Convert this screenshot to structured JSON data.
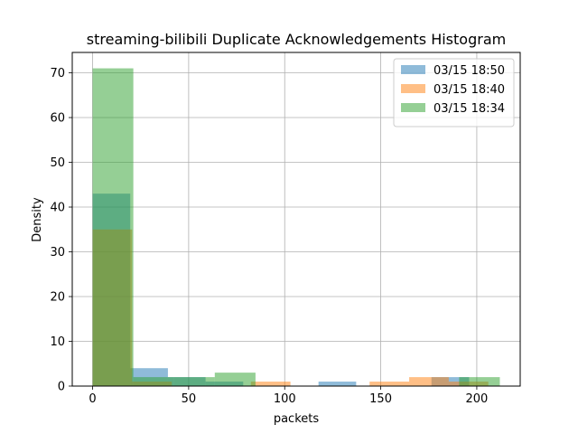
{
  "chart_data": {
    "type": "bar",
    "subtype": "overlapping-histogram",
    "title": "streaming-bilibili Duplicate Acknowledgements Histogram",
    "xlabel": "packets",
    "ylabel": "Density",
    "xlim": [
      -10.6,
      222.6
    ],
    "ylim": [
      0,
      74.55
    ],
    "xticks": [
      0,
      50,
      100,
      150,
      200
    ],
    "yticks": [
      0,
      10,
      20,
      30,
      40,
      50,
      60,
      70
    ],
    "grid": true,
    "legend_position": "top-right",
    "series": [
      {
        "name": "03/15 18:50",
        "color": "#1f77b4",
        "bins": [
          {
            "x0": 0,
            "x1": 19.6,
            "value": 43
          },
          {
            "x0": 19.6,
            "x1": 39.2,
            "value": 4
          },
          {
            "x0": 39.2,
            "x1": 58.8,
            "value": 2
          },
          {
            "x0": 58.8,
            "x1": 78.4,
            "value": 1
          },
          {
            "x0": 117.6,
            "x1": 137.2,
            "value": 1
          },
          {
            "x0": 176.4,
            "x1": 196,
            "value": 2
          }
        ]
      },
      {
        "name": "03/15 18:40",
        "color": "#ff7f0e",
        "bins": [
          {
            "x0": 0,
            "x1": 20.6,
            "value": 35
          },
          {
            "x0": 20.6,
            "x1": 41.2,
            "value": 1
          },
          {
            "x0": 82.4,
            "x1": 103,
            "value": 1
          },
          {
            "x0": 144.2,
            "x1": 164.8,
            "value": 1
          },
          {
            "x0": 164.8,
            "x1": 185.4,
            "value": 2
          },
          {
            "x0": 185.4,
            "x1": 206,
            "value": 1
          }
        ]
      },
      {
        "name": "03/15 18:34",
        "color": "#2ca02c",
        "bins": [
          {
            "x0": 0,
            "x1": 21.2,
            "value": 71
          },
          {
            "x0": 21.2,
            "x1": 42.4,
            "value": 2
          },
          {
            "x0": 42.4,
            "x1": 63.6,
            "value": 2
          },
          {
            "x0": 63.6,
            "x1": 84.8,
            "value": 3
          },
          {
            "x0": 190.8,
            "x1": 212,
            "value": 2
          }
        ]
      }
    ]
  }
}
